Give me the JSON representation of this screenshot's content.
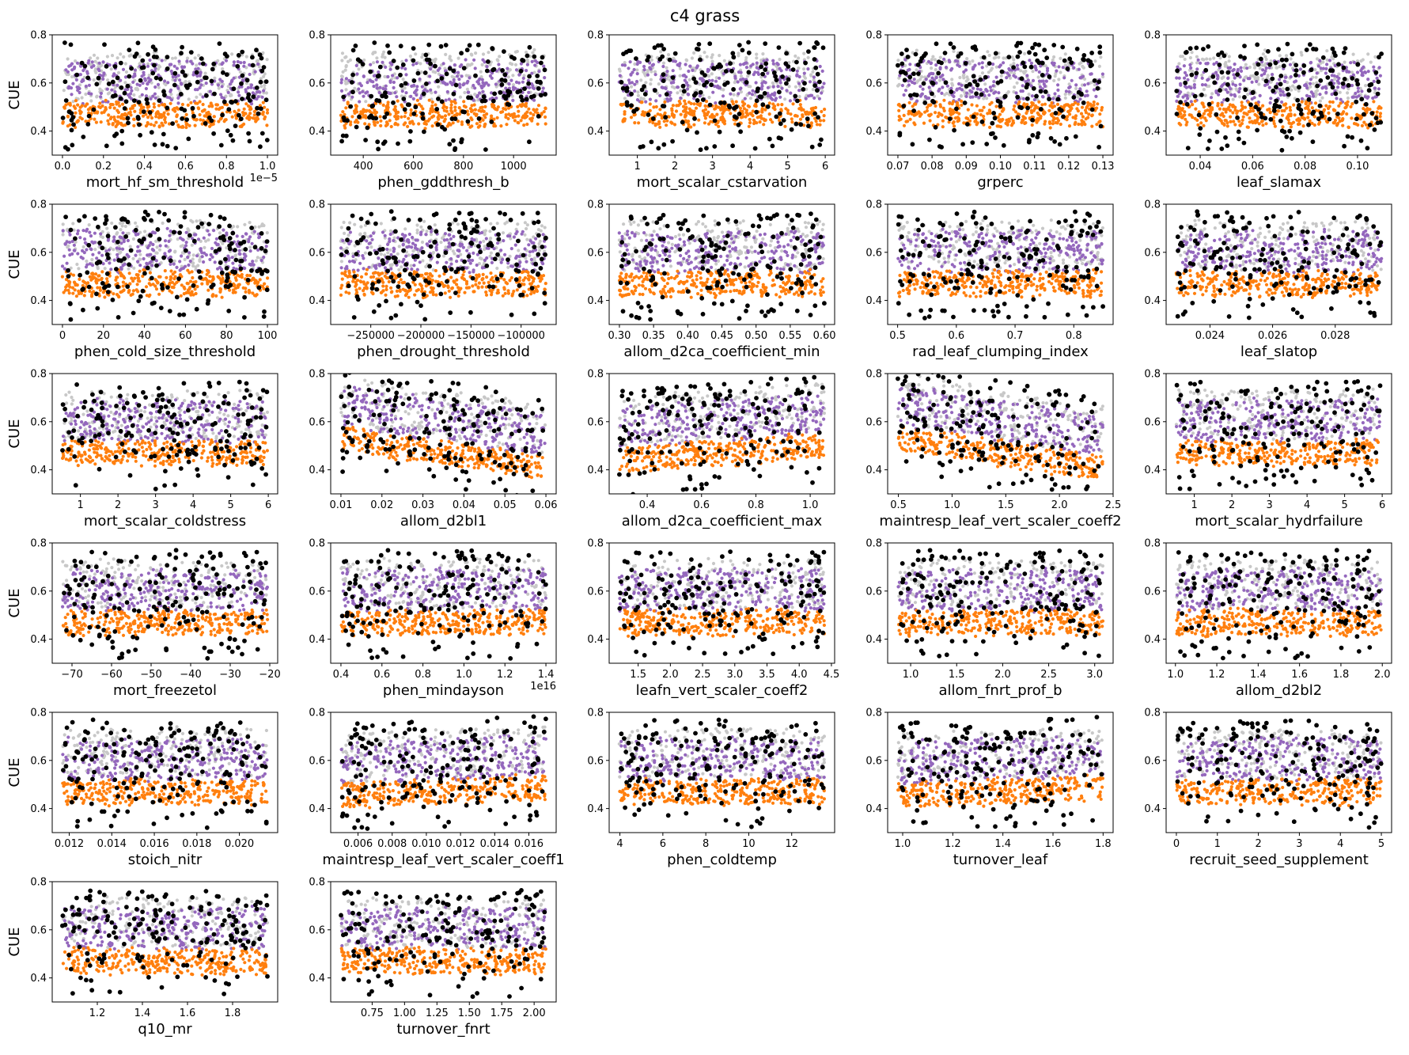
{
  "figure": {
    "title": "c4 grass",
    "ylabel": "CUE",
    "colors": {
      "gray": "#c8c8c8",
      "purple": "#9467bd",
      "orange": "#ff7f0e",
      "black": "#000000"
    }
  },
  "chart_data": [
    {
      "type": "scatter",
      "xlabel": "mort_hf_sm_threshold",
      "x_offset_text": "1e−5",
      "xlim": [
        -0.05,
        1.05
      ],
      "xticks": [
        0.0,
        0.2,
        0.4,
        0.6,
        0.8,
        1.0
      ],
      "xtick_labels": [
        "0.0",
        "0.2",
        "0.4",
        "0.6",
        "0.8",
        "1.0"
      ],
      "ylim": [
        0.3,
        0.8
      ],
      "yticks": [
        0.4,
        0.6,
        0.8
      ],
      "ytick_labels": [
        "0.4",
        "0.6",
        "0.8"
      ],
      "trend": 0.0
    },
    {
      "type": "scatter",
      "xlabel": "phen_gddthresh_b",
      "xlim": [
        270,
        1170
      ],
      "xticks": [
        400,
        600,
        800,
        1000
      ],
      "xtick_labels": [
        "400",
        "600",
        "800",
        "1000"
      ],
      "ylim": [
        0.3,
        0.8
      ],
      "yticks": [
        0.4,
        0.6,
        0.8
      ],
      "ytick_labels": [
        "0.4",
        "0.6",
        "0.8"
      ],
      "trend": 0.0
    },
    {
      "type": "scatter",
      "xlabel": "mort_scalar_cstarvation",
      "xlim": [
        0.25,
        6.25
      ],
      "xticks": [
        1,
        2,
        3,
        4,
        5,
        6
      ],
      "xtick_labels": [
        "1",
        "2",
        "3",
        "4",
        "5",
        "6"
      ],
      "ylim": [
        0.3,
        0.8
      ],
      "yticks": [
        0.4,
        0.6,
        0.8
      ],
      "ytick_labels": [
        "0.4",
        "0.6",
        "0.8"
      ],
      "trend": 0.0
    },
    {
      "type": "scatter",
      "xlabel": "grperc",
      "xlim": [
        0.067,
        0.133
      ],
      "xticks": [
        0.07,
        0.08,
        0.09,
        0.1,
        0.11,
        0.12,
        0.13
      ],
      "xtick_labels": [
        "0.07",
        "0.08",
        "0.09",
        "0.10",
        "0.11",
        "0.12",
        "0.13"
      ],
      "ylim": [
        0.3,
        0.8
      ],
      "yticks": [
        0.4,
        0.6,
        0.8
      ],
      "ytick_labels": [
        "0.4",
        "0.6",
        "0.8"
      ],
      "trend": 0.0
    },
    {
      "type": "scatter",
      "xlabel": "leaf_slamax",
      "xlim": [
        0.027,
        0.113
      ],
      "xticks": [
        0.04,
        0.06,
        0.08,
        0.1
      ],
      "xtick_labels": [
        "0.04",
        "0.06",
        "0.08",
        "0.10"
      ],
      "ylim": [
        0.3,
        0.8
      ],
      "yticks": [
        0.4,
        0.6,
        0.8
      ],
      "ytick_labels": [
        "0.4",
        "0.6",
        "0.8"
      ],
      "trend": 0.0
    },
    {
      "type": "scatter",
      "xlabel": "phen_cold_size_threshold",
      "xlim": [
        -5,
        105
      ],
      "xticks": [
        0,
        20,
        40,
        60,
        80,
        100
      ],
      "xtick_labels": [
        "0",
        "20",
        "40",
        "60",
        "80",
        "100"
      ],
      "ylim": [
        0.3,
        0.8
      ],
      "yticks": [
        0.4,
        0.6,
        0.8
      ],
      "ytick_labels": [
        "0.4",
        "0.6",
        "0.8"
      ],
      "trend": 0.0
    },
    {
      "type": "scatter",
      "xlabel": "phen_drought_threshold",
      "xlim": [
        -290000,
        -65000
      ],
      "xticks": [
        -250000,
        -200000,
        -150000,
        -100000
      ],
      "xtick_labels": [
        "−250000",
        "−200000",
        "−150000",
        "−100000"
      ],
      "ylim": [
        0.3,
        0.8
      ],
      "yticks": [
        0.4,
        0.6,
        0.8
      ],
      "ytick_labels": [
        "0.4",
        "0.6",
        "0.8"
      ],
      "trend": 0.0
    },
    {
      "type": "scatter",
      "xlabel": "allom_d2ca_coefficient_min",
      "xlim": [
        0.285,
        0.615
      ],
      "xticks": [
        0.3,
        0.35,
        0.4,
        0.45,
        0.5,
        0.55,
        0.6
      ],
      "xtick_labels": [
        "0.30",
        "0.35",
        "0.40",
        "0.45",
        "0.50",
        "0.55",
        "0.60"
      ],
      "ylim": [
        0.3,
        0.8
      ],
      "yticks": [
        0.4,
        0.6,
        0.8
      ],
      "ytick_labels": [
        "0.4",
        "0.6",
        "0.8"
      ],
      "trend": 0.0
    },
    {
      "type": "scatter",
      "xlabel": "rad_leaf_clumping_index",
      "xlim": [
        0.483,
        0.867
      ],
      "xticks": [
        0.5,
        0.6,
        0.7,
        0.8
      ],
      "xtick_labels": [
        "0.5",
        "0.6",
        "0.7",
        "0.8"
      ],
      "ylim": [
        0.3,
        0.8
      ],
      "yticks": [
        0.4,
        0.6,
        0.8
      ],
      "ytick_labels": [
        "0.4",
        "0.6",
        "0.8"
      ],
      "trend": 0.0
    },
    {
      "type": "scatter",
      "xlabel": "leaf_slatop",
      "xlim": [
        0.0226,
        0.0298
      ],
      "xticks": [
        0.024,
        0.026,
        0.028
      ],
      "xtick_labels": [
        "0.024",
        "0.026",
        "0.028"
      ],
      "ylim": [
        0.3,
        0.8
      ],
      "yticks": [
        0.4,
        0.6,
        0.8
      ],
      "ytick_labels": [
        "0.4",
        "0.6",
        "0.8"
      ],
      "trend": 0.0
    },
    {
      "type": "scatter",
      "xlabel": "mort_scalar_coldstress",
      "xlim": [
        0.25,
        6.25
      ],
      "xticks": [
        1,
        2,
        3,
        4,
        5,
        6
      ],
      "xtick_labels": [
        "1",
        "2",
        "3",
        "4",
        "5",
        "6"
      ],
      "ylim": [
        0.3,
        0.8
      ],
      "yticks": [
        0.4,
        0.6,
        0.8
      ],
      "ytick_labels": [
        "0.4",
        "0.6",
        "0.8"
      ],
      "trend": 0.0
    },
    {
      "type": "scatter",
      "xlabel": "allom_d2bl1",
      "xlim": [
        0.0075,
        0.0625
      ],
      "xticks": [
        0.01,
        0.02,
        0.03,
        0.04,
        0.05,
        0.06
      ],
      "xtick_labels": [
        "0.01",
        "0.02",
        "0.03",
        "0.04",
        "0.05",
        "0.06"
      ],
      "ylim": [
        0.3,
        0.8
      ],
      "yticks": [
        0.4,
        0.6,
        0.8
      ],
      "ytick_labels": [
        "0.4",
        "0.6",
        "0.8"
      ],
      "trend": -0.12
    },
    {
      "type": "scatter",
      "xlabel": "allom_d2ca_coefficient_max",
      "xlim": [
        0.26,
        1.09
      ],
      "xticks": [
        0.4,
        0.6,
        0.8,
        1.0
      ],
      "xtick_labels": [
        "0.4",
        "0.6",
        "0.8",
        "1.0"
      ],
      "ylim": [
        0.3,
        0.8
      ],
      "yticks": [
        0.4,
        0.6,
        0.8
      ],
      "ytick_labels": [
        "0.4",
        "0.6",
        "0.8"
      ],
      "trend": 0.06
    },
    {
      "type": "scatter",
      "xlabel": "maintresp_leaf_vert_scaler_coeff2",
      "xlim": [
        0.4,
        2.5
      ],
      "xticks": [
        0.5,
        1.0,
        1.5,
        2.0,
        2.5
      ],
      "xtick_labels": [
        "0.5",
        "1.0",
        "1.5",
        "2.0",
        "2.5"
      ],
      "ylim": [
        0.3,
        0.8
      ],
      "yticks": [
        0.4,
        0.6,
        0.8
      ],
      "ytick_labels": [
        "0.4",
        "0.6",
        "0.8"
      ],
      "trend": -0.13
    },
    {
      "type": "scatter",
      "xlabel": "mort_scalar_hydrfailure",
      "xlim": [
        0.25,
        6.25
      ],
      "xticks": [
        1,
        2,
        3,
        4,
        5,
        6
      ],
      "xtick_labels": [
        "1",
        "2",
        "3",
        "4",
        "5",
        "6"
      ],
      "ylim": [
        0.3,
        0.8
      ],
      "yticks": [
        0.4,
        0.6,
        0.8
      ],
      "ytick_labels": [
        "0.4",
        "0.6",
        "0.8"
      ],
      "trend": 0.0
    },
    {
      "type": "scatter",
      "xlabel": "mort_freezetol",
      "xlim": [
        -75,
        -18
      ],
      "xticks": [
        -70,
        -60,
        -50,
        -40,
        -30,
        -20
      ],
      "xtick_labels": [
        "−70",
        "−60",
        "−50",
        "−40",
        "−30",
        "−20"
      ],
      "ylim": [
        0.3,
        0.8
      ],
      "yticks": [
        0.4,
        0.6,
        0.8
      ],
      "ytick_labels": [
        "0.4",
        "0.6",
        "0.8"
      ],
      "trend": 0.0
    },
    {
      "type": "scatter",
      "xlabel": "phen_mindayson",
      "x_offset_text": "1e16",
      "xlim": [
        0.35,
        1.45
      ],
      "xticks": [
        0.4,
        0.6,
        0.8,
        1.0,
        1.2,
        1.4
      ],
      "xtick_labels": [
        "0.4",
        "0.6",
        "0.8",
        "1.0",
        "1.2",
        "1.4"
      ],
      "ylim": [
        0.3,
        0.8
      ],
      "yticks": [
        0.4,
        0.6,
        0.8
      ],
      "ytick_labels": [
        "0.4",
        "0.6",
        "0.8"
      ],
      "trend": 0.0
    },
    {
      "type": "scatter",
      "xlabel": "leafn_vert_scaler_coeff2",
      "xlim": [
        1.05,
        4.55
      ],
      "xticks": [
        1.5,
        2.0,
        2.5,
        3.0,
        3.5,
        4.0,
        4.5
      ],
      "xtick_labels": [
        "1.5",
        "2.0",
        "2.5",
        "3.0",
        "3.5",
        "4.0",
        "4.5"
      ],
      "ylim": [
        0.3,
        0.8
      ],
      "yticks": [
        0.4,
        0.6,
        0.8
      ],
      "ytick_labels": [
        "0.4",
        "0.6",
        "0.8"
      ],
      "trend": 0.0
    },
    {
      "type": "scatter",
      "xlabel": "allom_fnrt_prof_b",
      "xlim": [
        0.75,
        3.2
      ],
      "xticks": [
        1.0,
        1.5,
        2.0,
        2.5,
        3.0
      ],
      "xtick_labels": [
        "1.0",
        "1.5",
        "2.0",
        "2.5",
        "3.0"
      ],
      "ylim": [
        0.3,
        0.8
      ],
      "yticks": [
        0.4,
        0.6,
        0.8
      ],
      "ytick_labels": [
        "0.4",
        "0.6",
        "0.8"
      ],
      "trend": 0.0
    },
    {
      "type": "scatter",
      "xlabel": "allom_d2bl2",
      "xlim": [
        0.955,
        2.045
      ],
      "xticks": [
        1.0,
        1.2,
        1.4,
        1.6,
        1.8,
        2.0
      ],
      "xtick_labels": [
        "1.0",
        "1.2",
        "1.4",
        "1.6",
        "1.8",
        "2.0"
      ],
      "ylim": [
        0.3,
        0.8
      ],
      "yticks": [
        0.4,
        0.6,
        0.8
      ],
      "ytick_labels": [
        "0.4",
        "0.6",
        "0.8"
      ],
      "trend": 0.0
    },
    {
      "type": "scatter",
      "xlabel": "stoich_nitr",
      "xlim": [
        0.0112,
        0.0218
      ],
      "xticks": [
        0.012,
        0.014,
        0.016,
        0.018,
        0.02
      ],
      "xtick_labels": [
        "0.012",
        "0.014",
        "0.016",
        "0.018",
        "0.020"
      ],
      "ylim": [
        0.3,
        0.8
      ],
      "yticks": [
        0.4,
        0.6,
        0.8
      ],
      "ytick_labels": [
        "0.4",
        "0.6",
        "0.8"
      ],
      "trend": 0.0
    },
    {
      "type": "scatter",
      "xlabel": "maintresp_leaf_vert_scaler_coeff1",
      "xlim": [
        0.0044,
        0.0176
      ],
      "xticks": [
        0.006,
        0.008,
        0.01,
        0.012,
        0.014,
        0.016
      ],
      "xtick_labels": [
        "0.006",
        "0.008",
        "0.010",
        "0.012",
        "0.014",
        "0.016"
      ],
      "ylim": [
        0.3,
        0.8
      ],
      "yticks": [
        0.4,
        0.6,
        0.8
      ],
      "ytick_labels": [
        "0.4",
        "0.6",
        "0.8"
      ],
      "trend": 0.04
    },
    {
      "type": "scatter",
      "xlabel": "phen_coldtemp",
      "xlim": [
        3.5,
        14.0
      ],
      "xticks": [
        4,
        6,
        8,
        10,
        12
      ],
      "xtick_labels": [
        "4",
        "6",
        "8",
        "10",
        "12"
      ],
      "ylim": [
        0.3,
        0.8
      ],
      "yticks": [
        0.4,
        0.6,
        0.8
      ],
      "ytick_labels": [
        "0.4",
        "0.6",
        "0.8"
      ],
      "trend": 0.0
    },
    {
      "type": "scatter",
      "xlabel": "turnover_leaf",
      "xlim": [
        0.94,
        1.84
      ],
      "xticks": [
        1.0,
        1.2,
        1.4,
        1.6,
        1.8
      ],
      "xtick_labels": [
        "1.0",
        "1.2",
        "1.4",
        "1.6",
        "1.8"
      ],
      "ylim": [
        0.3,
        0.8
      ],
      "yticks": [
        0.4,
        0.6,
        0.8
      ],
      "ytick_labels": [
        "0.4",
        "0.6",
        "0.8"
      ],
      "trend": 0.03
    },
    {
      "type": "scatter",
      "xlabel": "recruit_seed_supplement",
      "xlim": [
        -0.25,
        5.25
      ],
      "xticks": [
        0,
        1,
        2,
        3,
        4,
        5
      ],
      "xtick_labels": [
        "0",
        "1",
        "2",
        "3",
        "4",
        "5"
      ],
      "ylim": [
        0.3,
        0.8
      ],
      "yticks": [
        0.4,
        0.6,
        0.8
      ],
      "ytick_labels": [
        "0.4",
        "0.6",
        "0.8"
      ],
      "trend": 0.0
    },
    {
      "type": "scatter",
      "xlabel": "q10_mr",
      "xlim": [
        1.0,
        2.0
      ],
      "xticks": [
        1.2,
        1.4,
        1.6,
        1.8
      ],
      "xtick_labels": [
        "1.2",
        "1.4",
        "1.6",
        "1.8"
      ],
      "ylim": [
        0.3,
        0.8
      ],
      "yticks": [
        0.4,
        0.6,
        0.8
      ],
      "ytick_labels": [
        "0.4",
        "0.6",
        "0.8"
      ],
      "trend": 0.0
    },
    {
      "type": "scatter",
      "xlabel": "turnover_fnrt",
      "xlim": [
        0.43,
        2.17
      ],
      "xticks": [
        0.75,
        1.0,
        1.25,
        1.5,
        1.75,
        2.0
      ],
      "xtick_labels": [
        "0.75",
        "1.00",
        "1.25",
        "1.50",
        "1.75",
        "2.00"
      ],
      "ylim": [
        0.3,
        0.8
      ],
      "yticks": [
        0.4,
        0.6,
        0.8
      ],
      "ytick_labels": [
        "0.4",
        "0.6",
        "0.8"
      ],
      "trend": 0.0
    }
  ]
}
